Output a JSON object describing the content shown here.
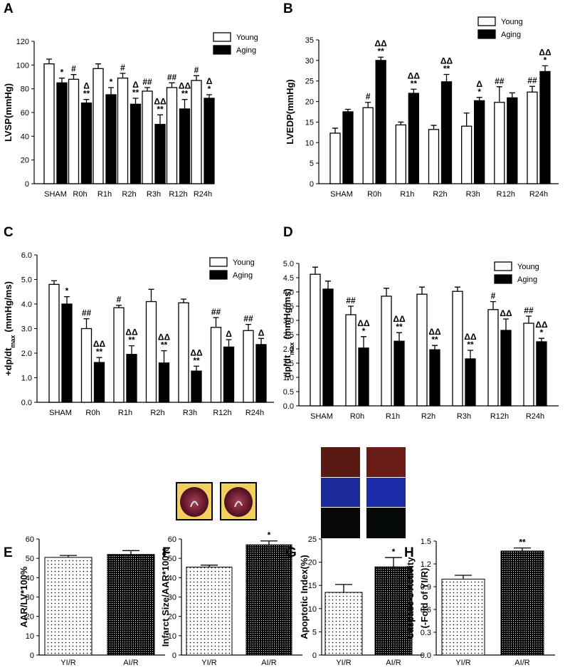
{
  "chart_data": [
    {
      "type": "grouped_bar",
      "panel_label": "A",
      "ylabel": "LVSP(mmHg)",
      "categories": [
        "SHAM",
        "R0h",
        "R1h",
        "R2h",
        "R3h",
        "R12h",
        "R24h"
      ],
      "series": [
        {
          "name": "Young",
          "color": "#ffffff",
          "values": [
            101,
            88,
            97,
            89,
            78,
            81,
            87
          ],
          "errors": [
            4,
            4,
            4,
            4,
            3,
            4,
            4
          ],
          "annotations": [
            null,
            [
              "#"
            ],
            null,
            [
              "#"
            ],
            [
              "##"
            ],
            [
              "##"
            ],
            [
              "#"
            ]
          ]
        },
        {
          "name": "Aging",
          "color": "#000000",
          "values": [
            85,
            68,
            75,
            67,
            50,
            63,
            72
          ],
          "errors": [
            4,
            3,
            6,
            5,
            8,
            8,
            3
          ],
          "annotations": [
            [
              "*"
            ],
            [
              "Δ",
              "**"
            ],
            [
              "*"
            ],
            [
              "Δ",
              "**"
            ],
            [
              "ΔΔ",
              "**"
            ],
            [
              "ΔΔ",
              "**"
            ],
            [
              "Δ",
              "*"
            ]
          ]
        }
      ],
      "ylim": [
        0,
        120
      ],
      "yticks": [
        0,
        20,
        40,
        60,
        80,
        100,
        120
      ],
      "legend": "upper right"
    },
    {
      "type": "grouped_bar",
      "panel_label": "B",
      "ylabel": "LVEDP(mmHg)",
      "categories": [
        "SHAM",
        "R0h",
        "R1h",
        "R2h",
        "R3h",
        "R12h",
        "R24h"
      ],
      "series": [
        {
          "name": "Young",
          "color": "#ffffff",
          "values": [
            12.3,
            18.5,
            14.3,
            13.2,
            14,
            19.8,
            22.3
          ],
          "errors": [
            1.2,
            1.3,
            0.7,
            1,
            3.2,
            3.8,
            1.4
          ],
          "annotations": [
            null,
            [
              "#"
            ],
            null,
            null,
            null,
            [
              "##"
            ],
            [
              "##"
            ]
          ]
        },
        {
          "name": "Aging",
          "color": "#000000",
          "values": [
            17.5,
            30,
            22,
            24.8,
            20.2,
            20.9,
            27.3
          ],
          "errors": [
            0.6,
            0.8,
            1,
            1.8,
            0.8,
            1.2,
            1.4
          ],
          "annotations": [
            null,
            [
              "ΔΔ",
              "**"
            ],
            [
              "ΔΔ",
              "**"
            ],
            [
              "ΔΔ",
              "**"
            ],
            [
              "Δ",
              "*"
            ],
            null,
            [
              "ΔΔ",
              "*"
            ]
          ]
        }
      ],
      "ylim": [
        0,
        35
      ],
      "yticks": [
        0,
        5,
        10,
        15,
        20,
        25,
        30,
        35
      ],
      "legend": "upper right"
    },
    {
      "type": "grouped_bar",
      "panel_label": "C",
      "ylabel": "+dp/dt",
      "ylabel_sub": "max",
      "ylabel_unit": "(mmHg/ms)",
      "categories": [
        "SHAM",
        "R0h",
        "R1h",
        "R2h",
        "R3h",
        "R12h",
        "R24h"
      ],
      "series": [
        {
          "name": "Young",
          "color": "#ffffff",
          "values": [
            4.8,
            3.0,
            3.85,
            4.1,
            4.05,
            3.05,
            2.92
          ],
          "errors": [
            0.15,
            0.4,
            0.1,
            0.5,
            0.15,
            0.4,
            0.25
          ],
          "annotations": [
            null,
            [
              "##"
            ],
            [
              "#"
            ],
            null,
            null,
            [
              "##"
            ],
            [
              "##"
            ]
          ]
        },
        {
          "name": "Aging",
          "color": "#000000",
          "values": [
            4.0,
            1.62,
            1.95,
            1.6,
            1.27,
            2.25,
            2.35
          ],
          "errors": [
            0.3,
            0.2,
            0.35,
            0.5,
            0.2,
            0.3,
            0.25
          ],
          "annotations": [
            [
              "*"
            ],
            [
              "ΔΔ",
              "**"
            ],
            [
              "ΔΔ",
              "**"
            ],
            [
              "ΔΔ",
              "**"
            ],
            [
              "ΔΔ",
              "**"
            ],
            [
              "Δ"
            ],
            [
              "Δ"
            ]
          ]
        }
      ],
      "ylim": [
        0,
        6
      ],
      "yticks": [
        {
          "value": 0,
          "label": "0.0"
        },
        {
          "value": 1,
          "label": "1.0"
        },
        {
          "value": 2,
          "label": "2.0"
        },
        {
          "value": 3,
          "label": "3.0"
        },
        {
          "value": 4,
          "label": "4.0"
        },
        {
          "value": 5,
          "label": "5.0"
        },
        {
          "value": 6,
          "label": "6.0"
        }
      ],
      "legend": "upper right"
    },
    {
      "type": "grouped_bar",
      "panel_label": "D",
      "ylabel": "-dp/dt",
      "ylabel_sub": "max",
      "ylabel_unit": "(mmHg/ms)",
      "categories": [
        "SHAM",
        "R0h",
        "R1h",
        "R2h",
        "R3h",
        "R12h",
        "R24h"
      ],
      "series": [
        {
          "name": "Young",
          "color": "#ffffff",
          "values": [
            4.62,
            3.2,
            3.85,
            3.92,
            4.02,
            3.38,
            2.9
          ],
          "errors": [
            0.25,
            0.3,
            0.28,
            0.25,
            0.15,
            0.28,
            0.25
          ],
          "annotations": [
            null,
            [
              "##"
            ],
            null,
            null,
            null,
            [
              "#"
            ],
            [
              "##"
            ]
          ]
        },
        {
          "name": "Aging",
          "color": "#000000",
          "values": [
            4.1,
            2.03,
            2.27,
            1.97,
            1.65,
            2.65,
            2.25
          ],
          "errors": [
            0.28,
            0.4,
            0.3,
            0.15,
            0.3,
            0.4,
            0.12
          ],
          "annotations": [
            null,
            [
              "ΔΔ",
              "*"
            ],
            [
              "ΔΔ",
              "**"
            ],
            [
              "ΔΔ",
              "**"
            ],
            [
              "ΔΔ",
              "**"
            ],
            [
              "ΔΔ"
            ],
            [
              "ΔΔ",
              "*"
            ]
          ]
        }
      ],
      "ylim": [
        0,
        5
      ],
      "yticks": [
        {
          "value": 0,
          "label": "0.0"
        },
        0.5,
        {
          "value": 1,
          "label": "1.0"
        },
        1.5,
        {
          "value": 2,
          "label": "2.0"
        },
        2.5,
        {
          "value": 3,
          "label": "3.0"
        },
        3.5,
        {
          "value": 4,
          "label": "4.0"
        },
        4.5,
        {
          "value": 5,
          "label": "5.0"
        }
      ],
      "legend": "upper right"
    },
    {
      "type": "bar",
      "panel_label": "E",
      "ylabel": "AAR/LV*100%",
      "categories": [
        "YI/R",
        "AI/R"
      ],
      "values": [
        50.5,
        52
      ],
      "errors": [
        1,
        2
      ],
      "colors": [
        "#ffffff",
        "#000000"
      ],
      "annotations": [
        null,
        null
      ],
      "ylim": [
        0,
        60
      ],
      "yticks": [
        0,
        10,
        20,
        30,
        40,
        50,
        60
      ]
    },
    {
      "type": "bar",
      "panel_label": "F",
      "ylabel": "Infarct Size/AAR*100%",
      "categories": [
        "YI/R",
        "AI/R"
      ],
      "values": [
        45.5,
        57
      ],
      "errors": [
        1,
        2
      ],
      "colors": [
        "#ffffff",
        "#000000"
      ],
      "annotations": [
        null,
        "*"
      ],
      "ylim": [
        0,
        60
      ],
      "yticks": [
        0,
        10,
        20,
        30,
        40,
        50,
        60
      ]
    },
    {
      "type": "bar",
      "panel_label": "G",
      "ylabel": "Apoptotic Index(%)",
      "categories": [
        "YI/R",
        "AI/R"
      ],
      "values": [
        13.5,
        19
      ],
      "errors": [
        1.7,
        2
      ],
      "colors": [
        "#ffffff",
        "#000000"
      ],
      "annotations": [
        null,
        "*"
      ],
      "ylim": [
        0,
        25
      ],
      "yticks": [
        0,
        5,
        10,
        15,
        20,
        25
      ]
    },
    {
      "type": "bar",
      "panel_label": "H",
      "ylabel": "Caspase-3  Activity",
      "ylabel2": "(-Fold of YI/R)",
      "categories": [
        "YI/R",
        "AI/R"
      ],
      "values": [
        1.0,
        1.37
      ],
      "errors": [
        0.05,
        0.04
      ],
      "colors": [
        "#ffffff",
        "#000000"
      ],
      "annotations": [
        null,
        "**"
      ],
      "ylim": [
        0,
        1.5
      ],
      "yticks": [
        {
          "value": 0,
          "label": "0.0"
        },
        0.3,
        0.6,
        0.9,
        {
          "value": 1.2,
          "label": "1.2"
        },
        1.5
      ]
    }
  ]
}
